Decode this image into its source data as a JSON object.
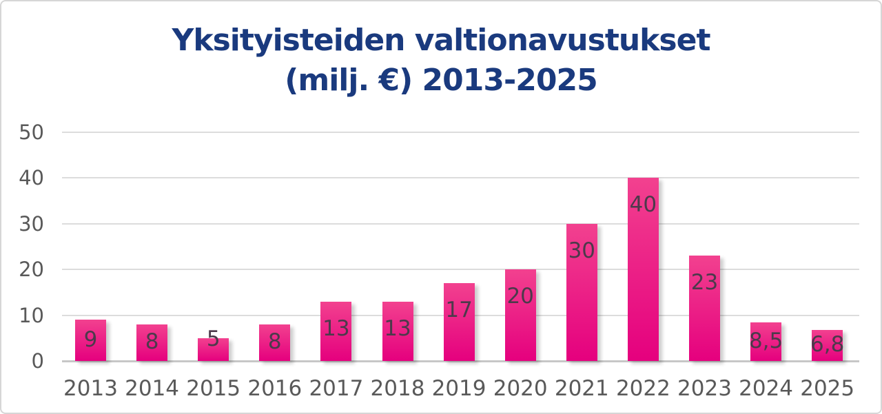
{
  "chart_data": {
    "type": "bar",
    "title": "Yksityisteiden valtionavustukset (milj. €) 2013-2025",
    "title_lines": [
      "Yksityisteiden valtionavustukset",
      "(milj. €) 2013-2025"
    ],
    "categories": [
      "2013",
      "2014",
      "2015",
      "2016",
      "2017",
      "2018",
      "2019",
      "2020",
      "2021",
      "2022",
      "2023",
      "2024",
      "2025"
    ],
    "values": [
      9,
      8,
      5,
      8,
      13,
      13,
      17,
      20,
      30,
      40,
      23,
      8.5,
      6.8
    ],
    "value_labels": [
      "9",
      "8",
      "5",
      "8",
      "13",
      "13",
      "17",
      "20",
      "30",
      "40",
      "23",
      "8,5",
      "6,8"
    ],
    "xlabel": "",
    "ylabel": "",
    "ylim": [
      0,
      50
    ],
    "yticks": [
      0,
      10,
      20,
      30,
      40,
      50
    ],
    "grid": "horizontal-on",
    "legend": "none"
  },
  "colors": {
    "title": "#1a3a7e",
    "bar_gradient_top": "#f2418f",
    "bar_gradient_bottom": "#e5007e",
    "axis_labels": "#595959",
    "value_labels": "#4c3a4b",
    "gridlines": "#dcdcdc",
    "axis_line": "#c7c7c7",
    "border": "#d6d6d6",
    "background": "#ffffff"
  }
}
